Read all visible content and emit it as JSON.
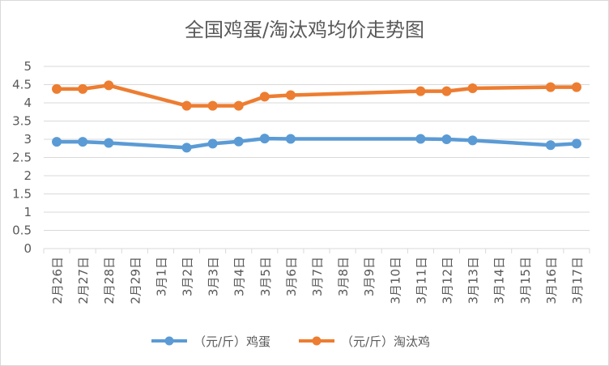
{
  "chart_data": {
    "type": "line",
    "title": "全国鸡蛋/淘汰鸡均价走势图",
    "categories": [
      "2月26日",
      "2月27日",
      "2月28日",
      "2月29日",
      "3月1日",
      "3月2日",
      "3月3日",
      "3月4日",
      "3月5日",
      "3月6日",
      "3月7日",
      "3月8日",
      "3月9日",
      "3月10日",
      "3月11日",
      "3月12日",
      "3月13日",
      "3月14日",
      "3月15日",
      "3月16日",
      "3月17日"
    ],
    "ylim": [
      0,
      5
    ],
    "yticks": [
      "0",
      "0.5",
      "1",
      "1.5",
      "2",
      "2.5",
      "3",
      "3.5",
      "4",
      "4.5",
      "5"
    ],
    "grid": true,
    "legend_position": "bottom",
    "series": [
      {
        "name": "（元/斤）鸡蛋",
        "color": "#5B9BD5",
        "values": [
          2.93,
          2.93,
          2.9,
          null,
          null,
          2.77,
          2.88,
          2.94,
          3.02,
          3.01,
          null,
          null,
          null,
          null,
          3.01,
          3.0,
          2.97,
          null,
          null,
          2.84,
          2.88
        ]
      },
      {
        "name": "（元/斤）淘汰鸡",
        "color": "#ED7D31",
        "values": [
          4.38,
          4.38,
          4.48,
          null,
          null,
          3.92,
          3.92,
          3.92,
          4.17,
          4.21,
          null,
          null,
          null,
          null,
          4.32,
          4.32,
          4.4,
          null,
          null,
          4.43,
          4.43
        ]
      }
    ]
  }
}
